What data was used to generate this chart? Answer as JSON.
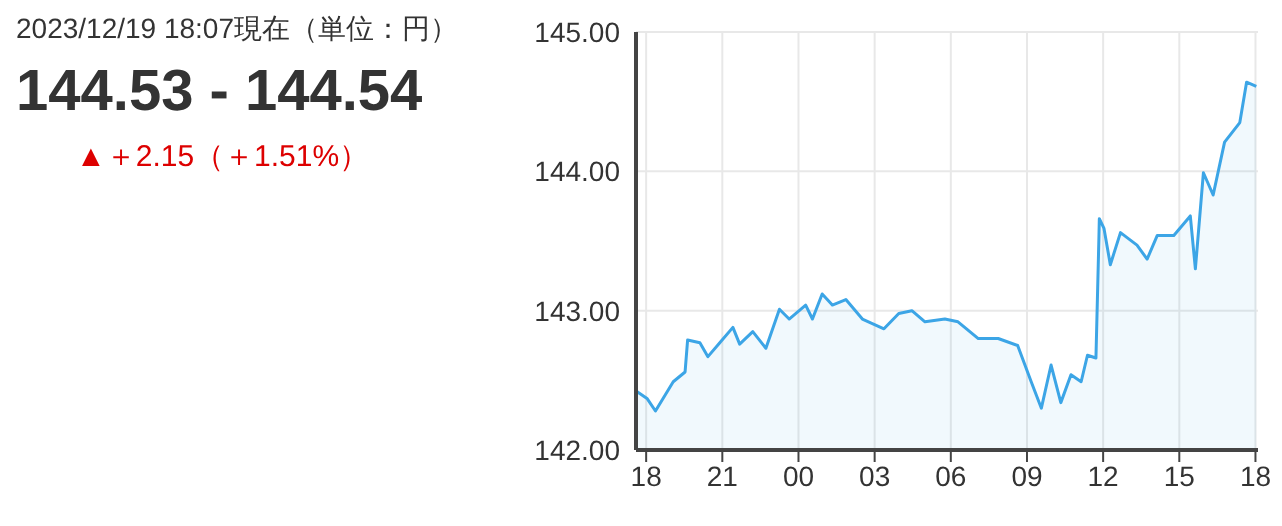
{
  "chart_data": {
    "type": "area",
    "annotations": [
      "2023/12/19 18:07現在（単位：円）",
      "144.53 - 144.54",
      "▲＋2.15（＋1.51%）"
    ],
    "x": [
      "2023-12-18T17:38",
      "2023-12-18T18:02",
      "2023-12-18T18:22",
      "2023-12-18T19:04",
      "2023-12-18T19:32",
      "2023-12-18T19:38",
      "2023-12-18T20:07",
      "2023-12-18T20:26",
      "2023-12-18T20:54",
      "2023-12-18T21:25",
      "2023-12-18T21:41",
      "2023-12-18T22:12",
      "2023-12-18T22:43",
      "2023-12-18T23:15",
      "2023-12-18T23:38",
      "2023-12-19T00:17",
      "2023-12-19T00:33",
      "2023-12-19T00:56",
      "2023-12-19T01:20",
      "2023-12-19T01:52",
      "2023-12-19T02:31",
      "2023-12-19T03:22",
      "2023-12-19T03:57",
      "2023-12-19T04:28",
      "2023-12-19T04:59",
      "2023-12-19T05:46",
      "2023-12-19T06:17",
      "2023-12-19T07:05",
      "2023-12-19T07:52",
      "2023-12-19T08:38",
      "2023-12-19T09:10",
      "2023-12-19T09:34",
      "2023-12-19T09:57",
      "2023-12-19T10:20",
      "2023-12-19T10:44",
      "2023-12-19T11:08",
      "2023-12-19T11:23",
      "2023-12-19T11:43",
      "2023-12-19T11:50",
      "2023-12-19T11:51",
      "2023-12-19T12:02",
      "2023-12-19T12:17",
      "2023-12-19T12:41",
      "2023-12-19T13:20",
      "2023-12-19T13:44",
      "2023-12-19T14:08",
      "2023-12-19T14:47",
      "2023-12-19T15:26",
      "2023-12-19T15:38",
      "2023-12-19T15:57",
      "2023-12-19T16:20",
      "2023-12-19T16:47",
      "2023-12-19T17:23",
      "2023-12-19T17:39",
      "2023-12-19T18:02"
    ],
    "series": [
      {
        "color": "#3ca5e6",
        "values": [
          142.42,
          142.37,
          142.28,
          142.49,
          142.56,
          142.79,
          142.77,
          142.67,
          142.77,
          142.88,
          142.76,
          142.85,
          142.73,
          143.01,
          142.94,
          143.04,
          142.94,
          143.12,
          143.04,
          143.08,
          142.94,
          142.87,
          142.98,
          143.0,
          142.92,
          142.94,
          142.92,
          142.8,
          142.8,
          142.75,
          142.49,
          142.3,
          142.61,
          142.34,
          142.54,
          142.49,
          142.68,
          142.66,
          143.52,
          143.66,
          143.59,
          143.33,
          143.56,
          143.47,
          143.37,
          143.54,
          143.54,
          143.68,
          143.3,
          143.99,
          143.83,
          144.21,
          144.35,
          144.64,
          144.61
        ]
      }
    ],
    "xlim": [
      "2023-12-18T17:36",
      "2023-12-19T18:06"
    ],
    "xticks": [
      {
        "value": "2023-12-18T18:00",
        "label": "18"
      },
      {
        "value": "2023-12-18T21:00",
        "label": "21"
      },
      {
        "value": "2023-12-19T00:00",
        "label": "00"
      },
      {
        "value": "2023-12-19T03:00",
        "label": "03"
      },
      {
        "value": "2023-12-19T06:00",
        "label": "06"
      },
      {
        "value": "2023-12-19T09:00",
        "label": "09"
      },
      {
        "value": "2023-12-19T12:00",
        "label": "12"
      },
      {
        "value": "2023-12-19T15:00",
        "label": "15"
      },
      {
        "value": "2023-12-19T18:00",
        "label": "18"
      }
    ],
    "ylim": [
      142,
      145
    ],
    "yticks": [
      {
        "value": 142,
        "label": "142.00"
      },
      {
        "value": 143,
        "label": "143.00"
      },
      {
        "value": 144,
        "label": "144.00"
      },
      {
        "value": 145,
        "label": "145.00"
      }
    ],
    "grid": true,
    "legend": false
  }
}
